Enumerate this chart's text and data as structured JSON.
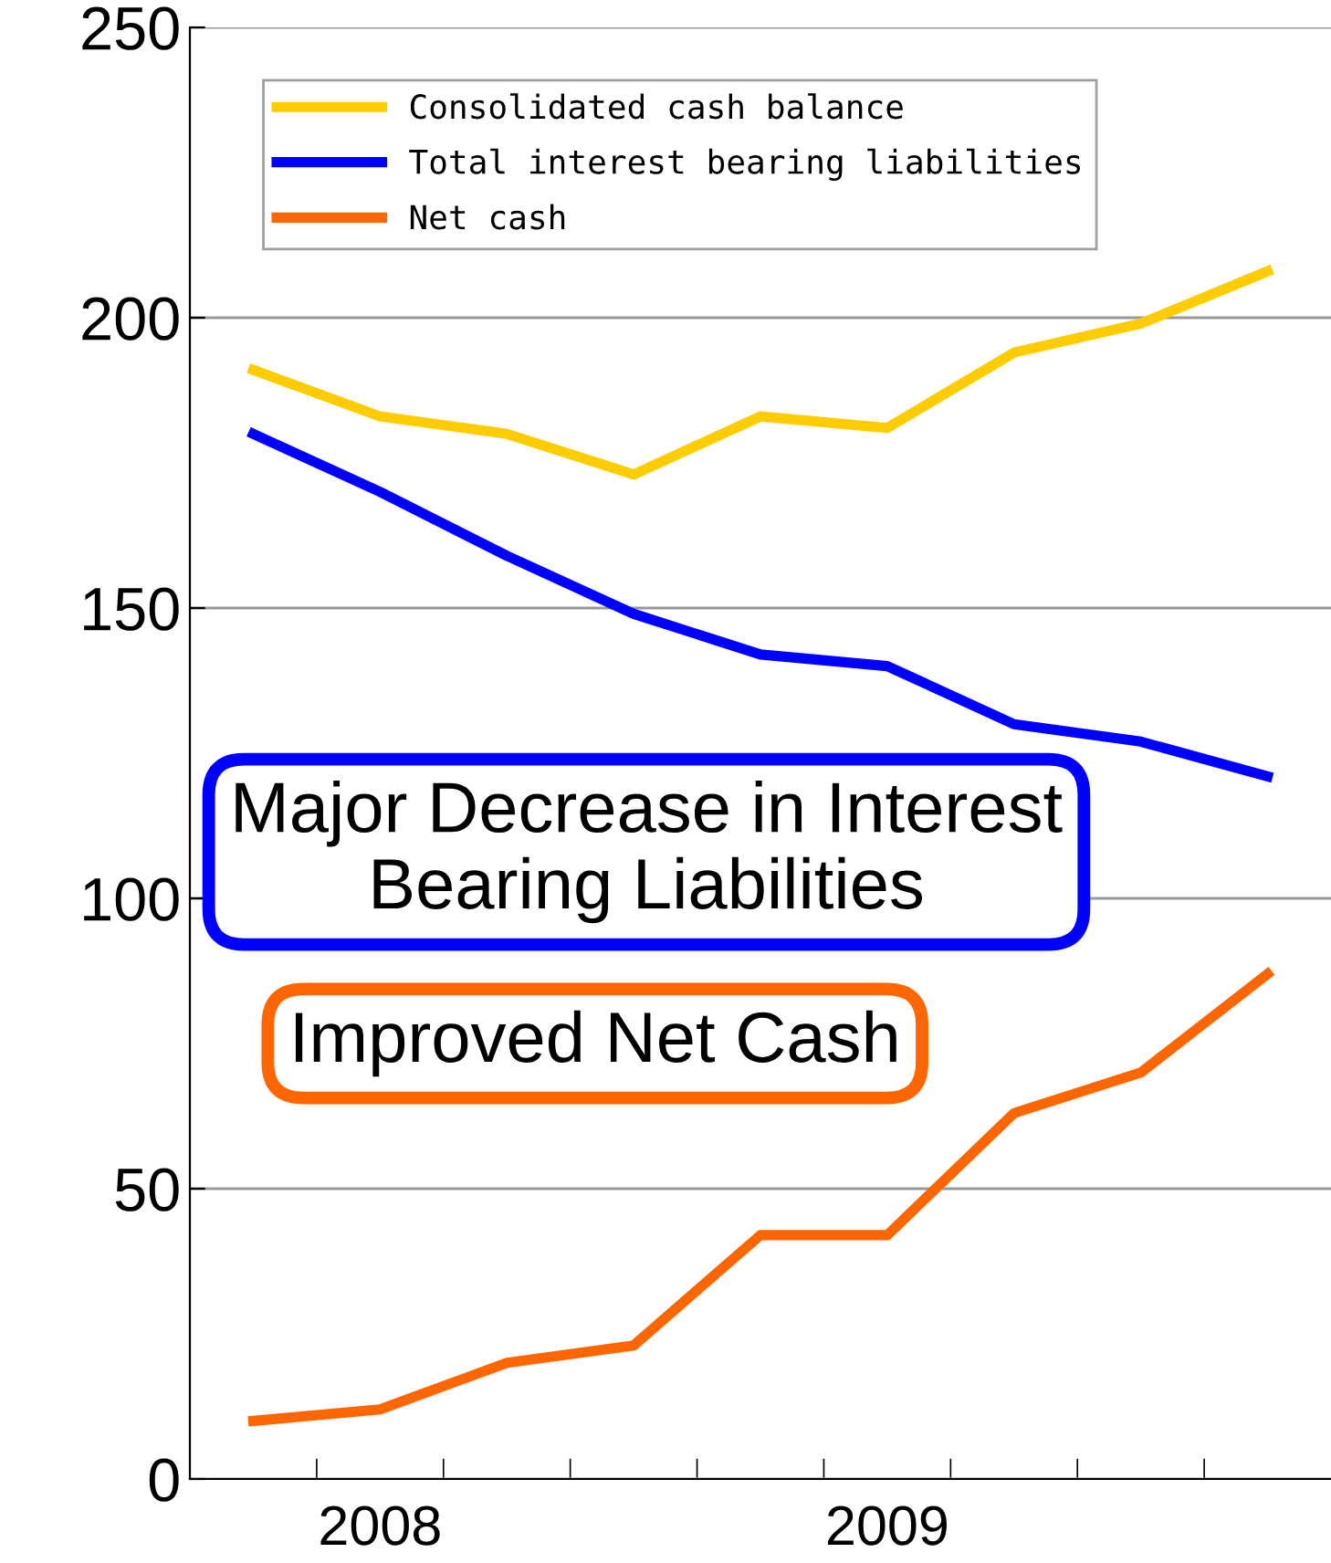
{
  "chart_data": {
    "type": "line",
    "categories": [
      null,
      "2008",
      null,
      null,
      null,
      "2009",
      null,
      null,
      null
    ],
    "series": [
      {
        "name": "Consolidated cash balance",
        "color": "#ffcc00",
        "values": [
          191,
          183,
          180,
          173,
          183,
          181,
          194,
          199,
          208
        ]
      },
      {
        "name": "Total interest bearing liabilities",
        "color": "#0000ff",
        "values": [
          180,
          170,
          159,
          149,
          142,
          140,
          130,
          127,
          121
        ]
      },
      {
        "name": "Net cash",
        "color": "#ff6600",
        "values": [
          10,
          12,
          20,
          23,
          42,
          42,
          63,
          70,
          87
        ]
      }
    ],
    "ylim": [
      0,
      250
    ],
    "yticks": [
      0,
      50,
      100,
      150,
      200,
      250
    ],
    "grid": "y",
    "legend": "top left",
    "marker": "none",
    "line_style": "solid",
    "annotations": [
      "Major Decrease in Interest\nBearing Liabilities",
      "Improved Net Cash"
    ]
  }
}
